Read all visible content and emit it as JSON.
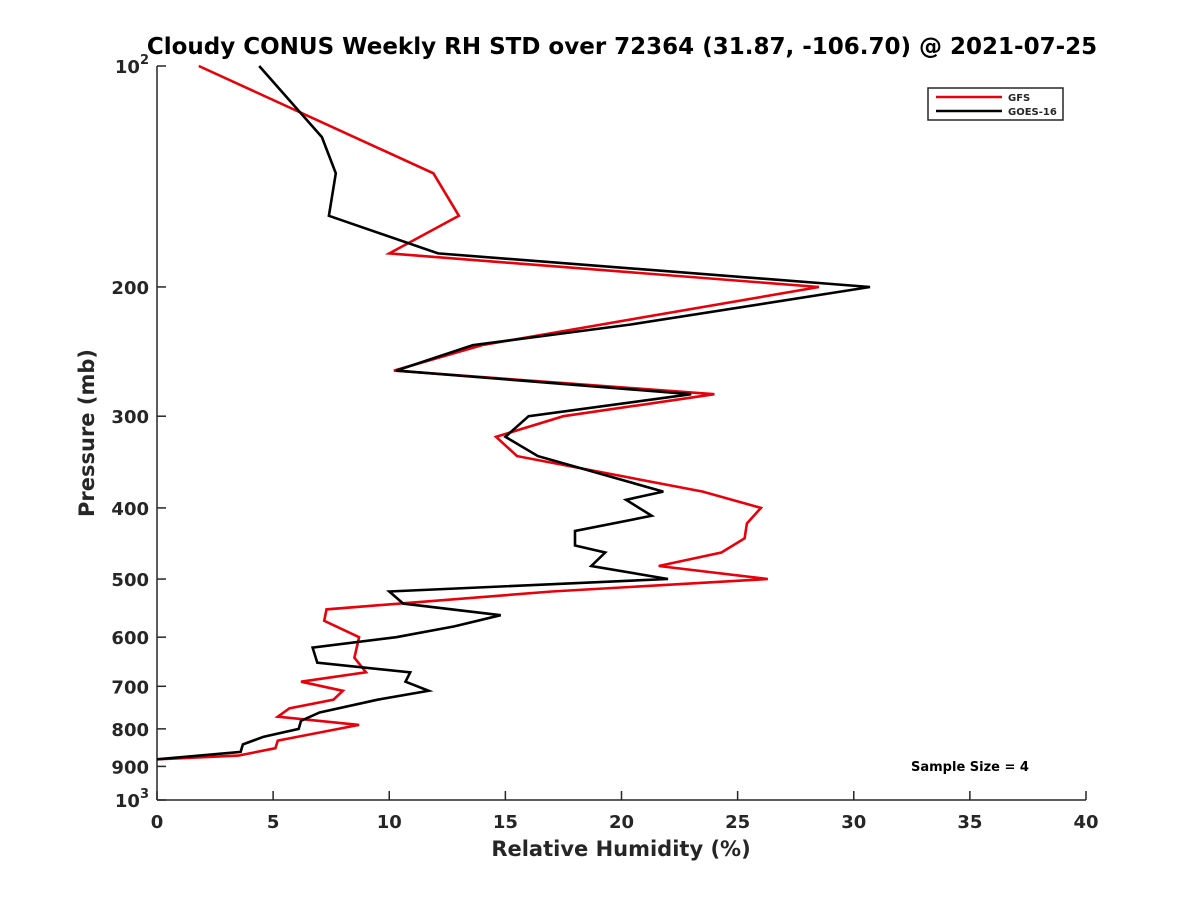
{
  "chart_data": {
    "type": "line",
    "title": "Cloudy CONUS Weekly RH STD over 72364 (31.87, -106.70) @ 2021-07-25",
    "xlabel": "Relative Humidity (%)",
    "ylabel": "Pressure (mb)",
    "xlim": [
      0,
      40
    ],
    "ylim": [
      100,
      1000
    ],
    "y_scale": "log",
    "y_reversed": true,
    "grid": false,
    "legend_position": "top-right",
    "annotation": "Sample Size = 4",
    "x_ticks": [
      "0",
      "5",
      "10",
      "15",
      "20",
      "25",
      "30",
      "35",
      "40"
    ],
    "y_ticks": [
      {
        "value": 100,
        "base": "10",
        "sup": "2"
      },
      {
        "value": 200,
        "base": "200",
        "sup": ""
      },
      {
        "value": 300,
        "base": "300",
        "sup": ""
      },
      {
        "value": 400,
        "base": "400",
        "sup": ""
      },
      {
        "value": 500,
        "base": "500",
        "sup": ""
      },
      {
        "value": 600,
        "base": "600",
        "sup": ""
      },
      {
        "value": 700,
        "base": "700",
        "sup": ""
      },
      {
        "value": 800,
        "base": "800",
        "sup": ""
      },
      {
        "value": 900,
        "base": "900",
        "sup": ""
      },
      {
        "value": 1000,
        "base": "10",
        "sup": "3"
      }
    ],
    "series": [
      {
        "name": "GFS",
        "color": "#e8000b",
        "points": [
          [
            1.8,
            100
          ],
          [
            11.9,
            140
          ],
          [
            13.0,
            160
          ],
          [
            10.0,
            180
          ],
          [
            28.5,
            200
          ],
          [
            14.0,
            240
          ],
          [
            10.2,
            260
          ],
          [
            24.0,
            280
          ],
          [
            17.5,
            300
          ],
          [
            14.6,
            320
          ],
          [
            15.5,
            340
          ],
          [
            23.5,
            380
          ],
          [
            26.0,
            400
          ],
          [
            25.4,
            420
          ],
          [
            25.3,
            440
          ],
          [
            24.3,
            460
          ],
          [
            21.6,
            480
          ],
          [
            26.3,
            500
          ],
          [
            17.0,
            520
          ],
          [
            7.3,
            550
          ],
          [
            7.2,
            570
          ],
          [
            8.7,
            600
          ],
          [
            8.5,
            640
          ],
          [
            9.0,
            670
          ],
          [
            6.2,
            690
          ],
          [
            8.0,
            710
          ],
          [
            7.6,
            730
          ],
          [
            5.7,
            750
          ],
          [
            5.2,
            770
          ],
          [
            8.7,
            790
          ],
          [
            5.2,
            830
          ],
          [
            5.1,
            850
          ],
          [
            3.5,
            870
          ],
          [
            0.0,
            880
          ]
        ]
      },
      {
        "name": "GOES-16",
        "color": "#000000",
        "points": [
          [
            4.4,
            100
          ],
          [
            7.1,
            125
          ],
          [
            7.7,
            140
          ],
          [
            7.4,
            160
          ],
          [
            12.1,
            180
          ],
          [
            30.7,
            200
          ],
          [
            20.4,
            225
          ],
          [
            13.6,
            240
          ],
          [
            10.3,
            260
          ],
          [
            23.0,
            280
          ],
          [
            16.0,
            300
          ],
          [
            15.0,
            320
          ],
          [
            16.4,
            340
          ],
          [
            21.8,
            380
          ],
          [
            20.2,
            390
          ],
          [
            21.3,
            410
          ],
          [
            18.0,
            430
          ],
          [
            18.0,
            450
          ],
          [
            19.3,
            460
          ],
          [
            18.7,
            480
          ],
          [
            22.0,
            500
          ],
          [
            10.0,
            520
          ],
          [
            10.6,
            540
          ],
          [
            14.8,
            560
          ],
          [
            12.8,
            580
          ],
          [
            10.3,
            600
          ],
          [
            6.7,
            620
          ],
          [
            6.9,
            650
          ],
          [
            10.9,
            670
          ],
          [
            10.7,
            690
          ],
          [
            11.7,
            710
          ],
          [
            9.5,
            730
          ],
          [
            7.0,
            760
          ],
          [
            6.2,
            780
          ],
          [
            6.1,
            800
          ],
          [
            4.6,
            820
          ],
          [
            3.7,
            840
          ],
          [
            3.6,
            860
          ],
          [
            0.0,
            880
          ]
        ]
      }
    ]
  }
}
